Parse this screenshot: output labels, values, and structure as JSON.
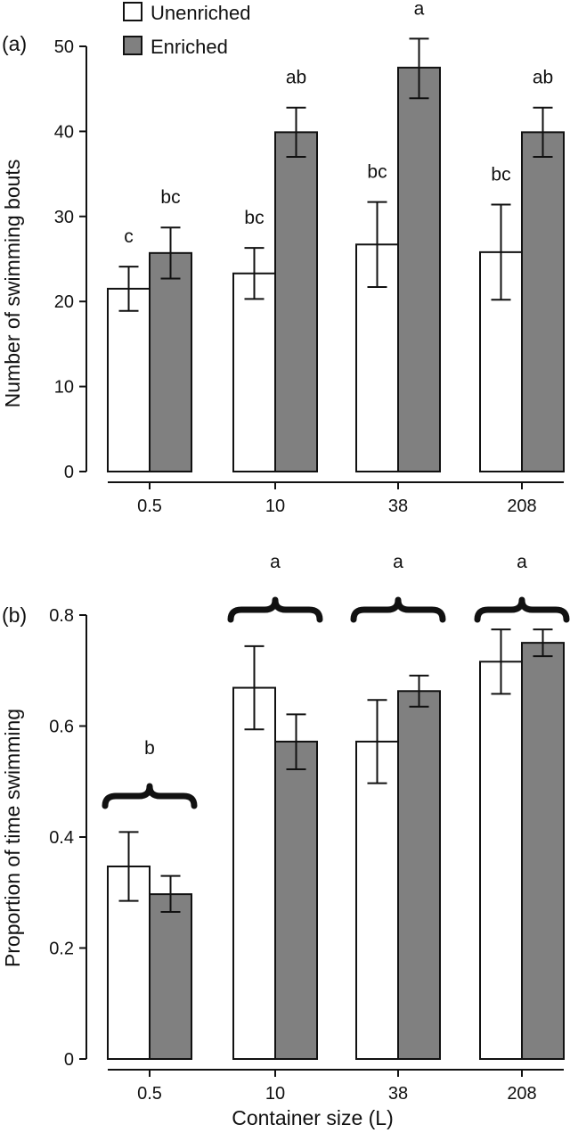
{
  "chart_data": [
    {
      "panel": "(a)",
      "type": "bar",
      "ylabel": "Number of swimming bouts",
      "ylim": [
        0,
        50
      ],
      "yticks": [
        0,
        10,
        20,
        30,
        40,
        50
      ],
      "categories": [
        "0.5",
        "10",
        "38",
        "208"
      ],
      "series": [
        {
          "name": "Unenriched",
          "color": "#ffffff",
          "values": [
            21.5,
            23.3,
            26.7,
            25.8
          ],
          "err_low": [
            18.9,
            20.3,
            21.7,
            20.2
          ],
          "err_high": [
            24.1,
            26.3,
            31.7,
            31.4
          ],
          "letters": [
            "c",
            "bc",
            "bc",
            "bc"
          ]
        },
        {
          "name": "Enriched",
          "color": "#808080",
          "values": [
            25.7,
            39.9,
            47.5,
            39.9
          ],
          "err_low": [
            22.7,
            37.0,
            43.9,
            37.0
          ],
          "err_high": [
            28.7,
            42.8,
            50.9,
            42.8
          ],
          "letters": [
            "bc",
            "ab",
            "a",
            "ab"
          ]
        }
      ]
    },
    {
      "panel": "(b)",
      "type": "bar",
      "ylabel": "Proportion of time swimming",
      "xlabel": "Container size (L)",
      "ylim": [
        0,
        0.8
      ],
      "yticks": [
        "0",
        "0.2",
        "0.4",
        "0.6",
        "0.8"
      ],
      "categories": [
        "0.5",
        "10",
        "38",
        "208"
      ],
      "group_letters": [
        "b",
        "a",
        "a",
        "a"
      ],
      "series": [
        {
          "name": "Unenriched",
          "color": "#ffffff",
          "values": [
            0.347,
            0.669,
            0.572,
            0.716
          ],
          "err_low": [
            0.285,
            0.594,
            0.497,
            0.658
          ],
          "err_high": [
            0.409,
            0.744,
            0.647,
            0.774
          ]
        },
        {
          "name": "Enriched",
          "color": "#808080",
          "values": [
            0.297,
            0.572,
            0.663,
            0.75
          ],
          "err_low": [
            0.265,
            0.522,
            0.635,
            0.726
          ],
          "err_high": [
            0.33,
            0.621,
            0.691,
            0.774
          ]
        }
      ]
    }
  ]
}
